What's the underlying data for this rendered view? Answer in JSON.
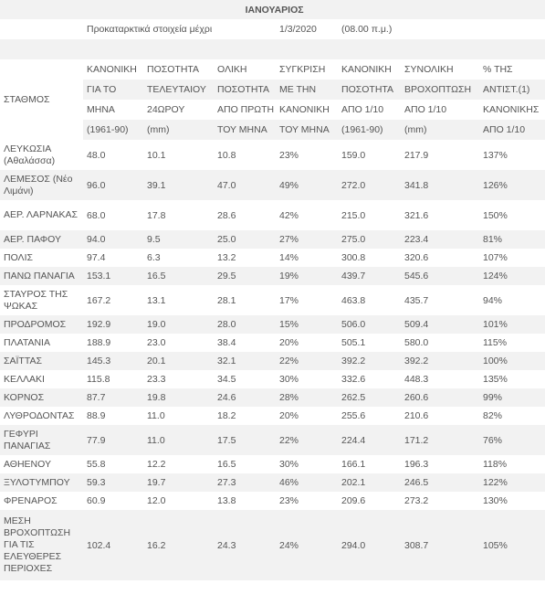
{
  "title": "ΙΑΝΟΥΑΡΙΟΣ",
  "prelim": {
    "label": "Προκαταρκτικά στοιχεία μέχρι",
    "date": "1/3/2020",
    "time": "(08.00 π.μ.)"
  },
  "header": {
    "station": "ΣΤΑΘΜΟΣ",
    "rows": [
      [
        "ΚΑΝΟΝΙΚΗ",
        "ΠΟΣΟΤΗΤΑ",
        "ΟΛΙΚΗ",
        "ΣΥΓΚΡΙΣΗ",
        "ΚΑΝΟΝΙΚΗ",
        "ΣΥΝΟΛΙΚΗ",
        "% ΤΗΣ"
      ],
      [
        "ΓΙΑ ΤΟ",
        "ΤΕΛΕΥΤΑΙΟΥ",
        "ΠΟΣΟΤΗΤΑ",
        "ΜΕ ΤΗΝ",
        "ΠΟΣΟΤΗΤΑ",
        "ΒΡΟΧΟΠΤΩΣΗ",
        "ΑΝΤΙΣΤ.(1)"
      ],
      [
        "ΜΗΝΑ",
        "24ΩΡΟΥ",
        "ΑΠΟ ΠΡΩΤΗ",
        "ΚΑΝΟΝΙΚΗ",
        "ΑΠΟ 1/10",
        "ΑΠΟ 1/10",
        "ΚΑΝΟΝΙΚΗΣ"
      ],
      [
        "(1961-90)",
        "(mm)",
        "ΤΟΥ ΜΗΝΑ",
        "ΤΟΥ ΜΗΝΑ",
        "(1961-90)",
        "(mm)",
        "ΑΠΟ 1/10"
      ]
    ]
  },
  "rows": [
    {
      "station": "ΛΕΥΚΩΣΙΑ (Αθαλάσσα)",
      "values": [
        "48.0",
        "10.1",
        "10.8",
        "23%",
        "159.0",
        "217.9",
        "137%"
      ]
    },
    {
      "station": "ΛΕΜΕΣΟΣ (Νέο Λιμάνι)",
      "values": [
        "96.0",
        "39.1",
        "47.0",
        "49%",
        "272.0",
        "341.8",
        "126%"
      ]
    },
    {
      "station": "ΑΕΡ. ΛΑΡΝΑΚΑΣ",
      "values": [
        "68.0",
        "17.8",
        "28.6",
        "42%",
        "215.0",
        "321.6",
        "150%"
      ]
    },
    {
      "station": "ΑΕΡ.  ΠΑΦΟΥ",
      "values": [
        "94.0",
        "9.5",
        "25.0",
        "27%",
        "275.0",
        "223.4",
        "81%"
      ]
    },
    {
      "station": "ΠΟΛΙΣ",
      "values": [
        "97.4",
        "6.3",
        "13.2",
        "14%",
        "300.8",
        "320.6",
        "107%"
      ]
    },
    {
      "station": "ΠΑΝΩ ΠΑΝΑΓΙΑ",
      "values": [
        "153.1",
        "16.5",
        "29.5",
        "19%",
        "439.7",
        "545.6",
        "124%"
      ]
    },
    {
      "station": "ΣΤΑΥΡΟΣ ΤΗΣ ΨΩΚΑΣ",
      "values": [
        "167.2",
        "13.1",
        "28.1",
        "17%",
        "463.8",
        "435.7",
        "94%"
      ]
    },
    {
      "station": "ΠΡΟΔΡΟΜΟΣ",
      "values": [
        "192.9",
        "19.0",
        "28.0",
        "15%",
        "506.0",
        "509.4",
        "101%"
      ]
    },
    {
      "station": "ΠΛΑΤΑΝΙΑ",
      "values": [
        "188.9",
        "23.0",
        "38.4",
        "20%",
        "505.1",
        "580.0",
        "115%"
      ]
    },
    {
      "station": "ΣΑΪΤΤΑΣ",
      "values": [
        "145.3",
        "20.1",
        "32.1",
        "22%",
        "392.2",
        "392.2",
        "100%"
      ]
    },
    {
      "station": "ΚΕΛΛΑΚΙ",
      "values": [
        "115.8",
        "23.3",
        "34.5",
        "30%",
        "332.6",
        "448.3",
        "135%"
      ]
    },
    {
      "station": "ΚΟΡΝΟΣ",
      "values": [
        "87.7",
        "19.8",
        "24.6",
        "28%",
        "262.5",
        "260.6",
        "99%"
      ]
    },
    {
      "station": "ΛΥΘΡΟΔΟΝΤΑΣ",
      "values": [
        "88.9",
        "11.0",
        "18.2",
        "20%",
        "255.6",
        "210.6",
        "82%"
      ]
    },
    {
      "station": "ΓΕΦΥΡΙ ΠΑΝΑΓΙΑΣ",
      "values": [
        "77.9",
        "11.0",
        "17.5",
        "22%",
        "224.4",
        "171.2",
        "76%"
      ]
    },
    {
      "station": "ΑΘΗΕΝΟΥ",
      "values": [
        "55.8",
        "12.2",
        "16.5",
        "30%",
        "166.1",
        "196.3",
        "118%"
      ]
    },
    {
      "station": "ΞΥΛΟΤΥΜΠΟΥ",
      "values": [
        "59.3",
        "19.7",
        "27.3",
        "46%",
        "202.1",
        "246.5",
        "122%"
      ]
    },
    {
      "station": "ΦΡΕΝΑΡΟΣ",
      "values": [
        "60.9",
        "12.0",
        "13.8",
        "23%",
        "209.6",
        "273.2",
        "130%"
      ]
    },
    {
      "station": "ΜΕΣΗ ΒΡΟΧΟΠΤΩΣΗ ΓΙΑ ΤΙΣ ΕΛΕΥΘΕΡΕΣ ΠΕΡΙΟΧΕΣ",
      "values": [
        "102.4",
        "16.2",
        "24.3",
        "24%",
        "294.0",
        "308.7",
        "105%"
      ]
    }
  ]
}
